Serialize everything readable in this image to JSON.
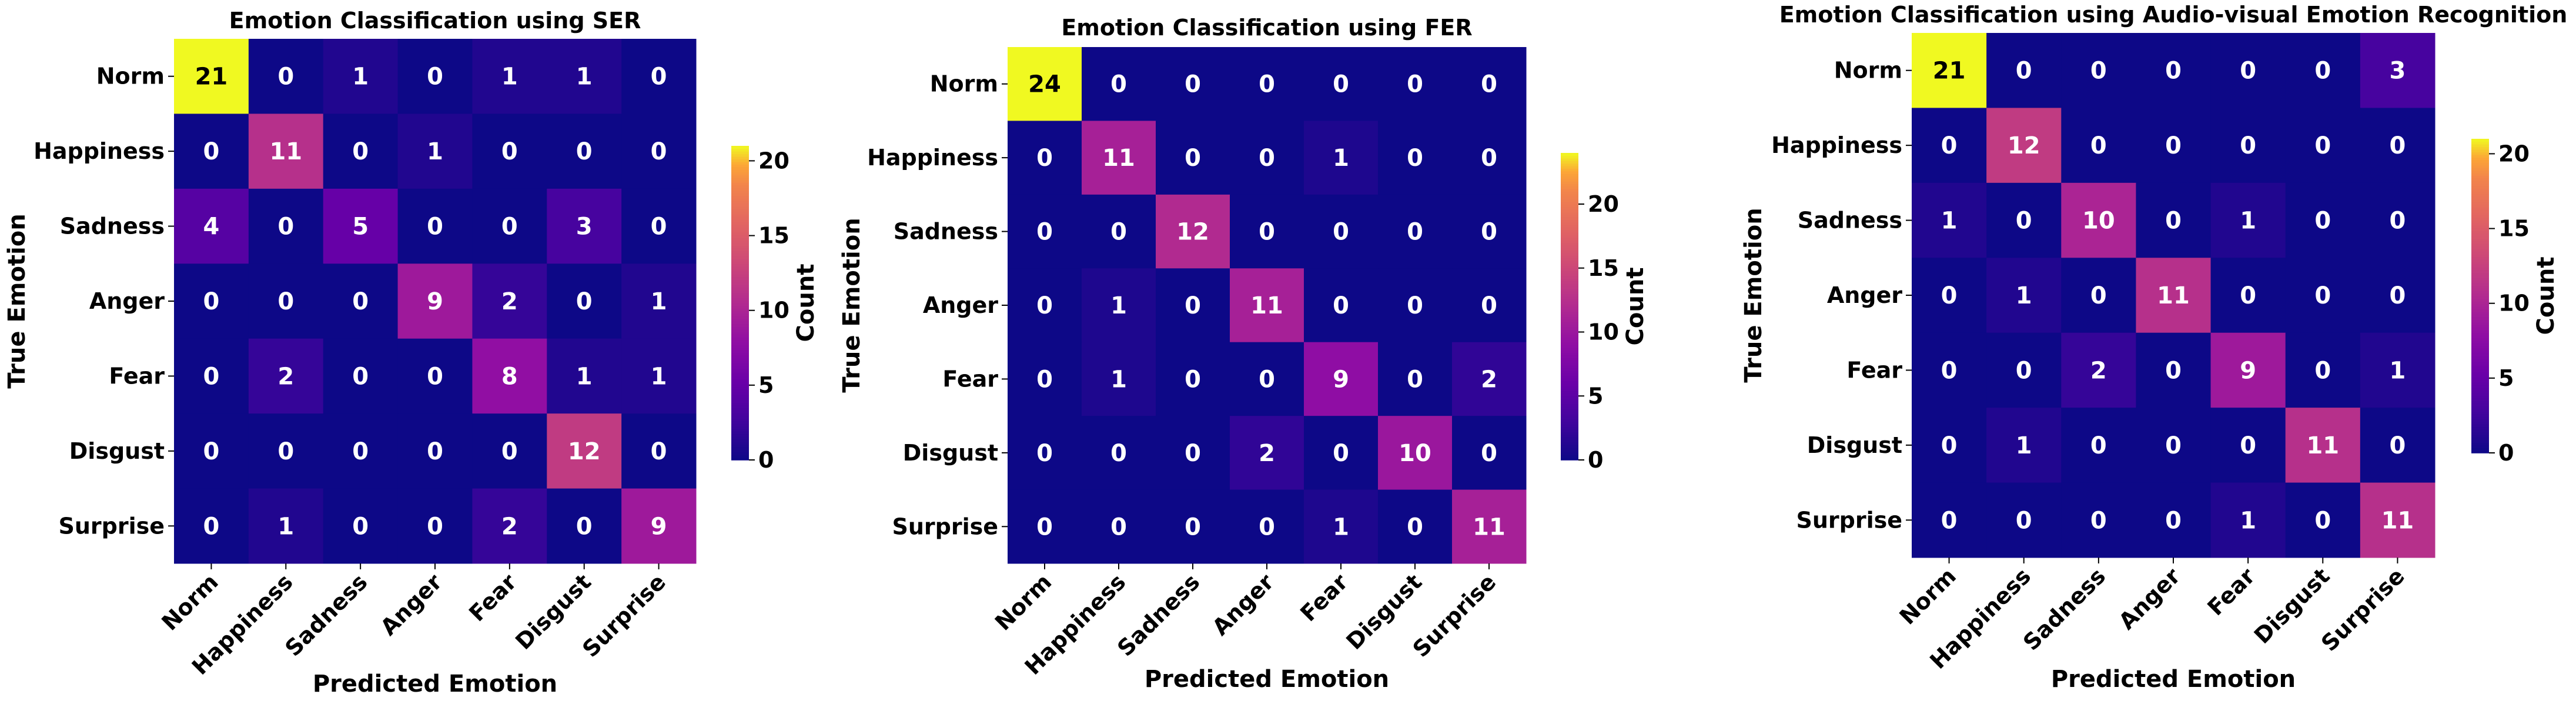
{
  "chart_data": [
    {
      "type": "heatmap",
      "title": "Emotion Classification using SER",
      "xlabel": "Predicted Emotion",
      "ylabel": "True Emotion",
      "colorbar_label": "Count",
      "colormap": "plasma",
      "categories": [
        "Norm",
        "Happiness",
        "Sadness",
        "Anger",
        "Fear",
        "Disgust",
        "Surprise"
      ],
      "values": [
        [
          21,
          0,
          1,
          0,
          1,
          1,
          0
        ],
        [
          0,
          11,
          0,
          1,
          0,
          0,
          0
        ],
        [
          4,
          0,
          5,
          0,
          0,
          3,
          0
        ],
        [
          0,
          0,
          0,
          9,
          2,
          0,
          1
        ],
        [
          0,
          2,
          0,
          0,
          8,
          1,
          1
        ],
        [
          0,
          0,
          0,
          0,
          0,
          12,
          0
        ],
        [
          0,
          1,
          0,
          0,
          2,
          0,
          9
        ]
      ],
      "vmin": 0,
      "vmax": 21,
      "colorbar_ticks": [
        0,
        5,
        10,
        15,
        20
      ]
    },
    {
      "type": "heatmap",
      "title": "Emotion Classification using FER",
      "xlabel": "Predicted Emotion",
      "ylabel": "True Emotion",
      "colorbar_label": "Count",
      "colormap": "plasma",
      "categories": [
        "Norm",
        "Happiness",
        "Sadness",
        "Anger",
        "Fear",
        "Disgust",
        "Surprise"
      ],
      "values": [
        [
          24,
          0,
          0,
          0,
          0,
          0,
          0
        ],
        [
          0,
          11,
          0,
          0,
          1,
          0,
          0
        ],
        [
          0,
          0,
          12,
          0,
          0,
          0,
          0
        ],
        [
          0,
          1,
          0,
          11,
          0,
          0,
          0
        ],
        [
          0,
          1,
          0,
          0,
          9,
          0,
          2
        ],
        [
          0,
          0,
          0,
          2,
          0,
          10,
          0
        ],
        [
          0,
          0,
          0,
          0,
          1,
          0,
          11
        ]
      ],
      "vmin": 0,
      "vmax": 24,
      "colorbar_ticks": [
        0,
        5,
        10,
        15,
        20
      ]
    },
    {
      "type": "heatmap",
      "title": "Emotion Classification using Audio-visual Emotion Recognition",
      "xlabel": "Predicted Emotion",
      "ylabel": "True Emotion",
      "colorbar_label": "Count",
      "colormap": "plasma",
      "categories": [
        "Norm",
        "Happiness",
        "Sadness",
        "Anger",
        "Fear",
        "Disgust",
        "Surprise"
      ],
      "values": [
        [
          21,
          0,
          0,
          0,
          0,
          0,
          3
        ],
        [
          0,
          12,
          0,
          0,
          0,
          0,
          0
        ],
        [
          1,
          0,
          10,
          0,
          1,
          0,
          0
        ],
        [
          0,
          1,
          0,
          11,
          0,
          0,
          0
        ],
        [
          0,
          0,
          2,
          0,
          9,
          0,
          1
        ],
        [
          0,
          1,
          0,
          0,
          0,
          11,
          0
        ],
        [
          0,
          0,
          0,
          0,
          1,
          0,
          11
        ]
      ],
      "vmin": 0,
      "vmax": 21,
      "colorbar_ticks": [
        0,
        5,
        10,
        15,
        20
      ]
    }
  ]
}
